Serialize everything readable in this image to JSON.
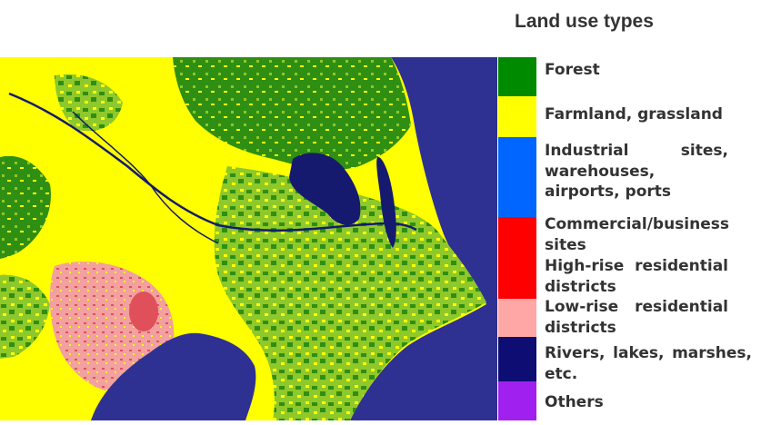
{
  "legend": {
    "title": "Land use types",
    "items": [
      {
        "label": "Forest",
        "color": "#008a00"
      },
      {
        "label": "Farmland, grassland",
        "color": "#ffff00"
      },
      {
        "label": "Industrial sites, warehouses, airports, ports",
        "color": "#0066ff"
      },
      {
        "label": "Commercial/business sites",
        "color": "#ff0000"
      },
      {
        "label": "High-rise residential districts",
        "color": "#ff0000"
      },
      {
        "label": "Low-rise residential districts",
        "color": "#ffa6a6"
      },
      {
        "label": "Rivers, lakes, marshes, etc.",
        "color": "#0d0d73"
      },
      {
        "label": "Others",
        "color": "#a020f0"
      }
    ]
  },
  "map": {
    "colors": {
      "sea": "#2e3191",
      "farmland": "#ffff00",
      "forest": "#2f8f12",
      "green_mix": "#8fc82a",
      "urban": "#f2a0a0",
      "commercial": "#e0505a",
      "water": "#151a6e"
    }
  }
}
